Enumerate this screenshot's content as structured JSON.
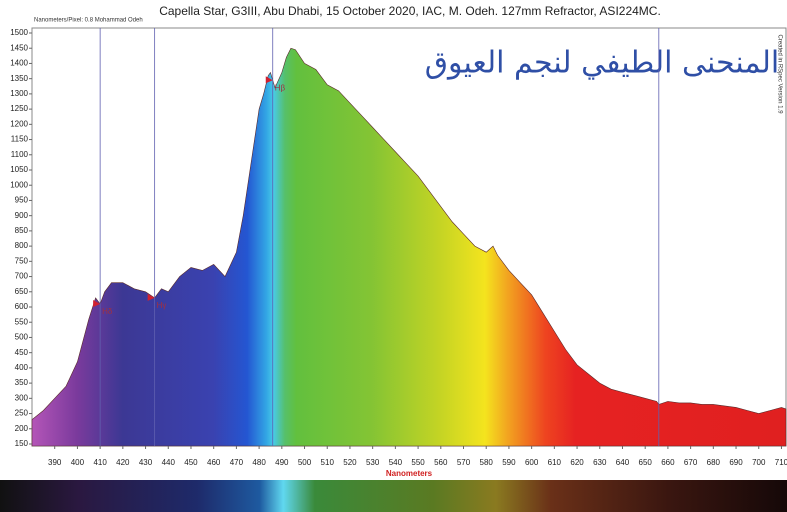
{
  "chart_data": {
    "type": "area",
    "title": "Capella Star, G3III, Abu Dhabi, 15 October 2020, IAC, M. Odeh. 127mm Refractor, ASI224MC.",
    "corner_note": "Nanometers/Pixel: 0.8 Mohammad Odeh",
    "side_note": "Created in RSpec Version 1.9",
    "arabic_title": "المنحنى الطيفي لنجم العيوق",
    "x_label": "Nanometers",
    "x": [
      380,
      385,
      390,
      395,
      400,
      405,
      408,
      410,
      412,
      415,
      420,
      425,
      430,
      434,
      437,
      440,
      445,
      450,
      455,
      460,
      465,
      470,
      473,
      476,
      478,
      480,
      482,
      484,
      485,
      487,
      490,
      492,
      494,
      496,
      500,
      505,
      510,
      515,
      520,
      525,
      530,
      535,
      540,
      545,
      550,
      555,
      560,
      565,
      570,
      575,
      580,
      583,
      585,
      590,
      595,
      600,
      605,
      610,
      615,
      620,
      625,
      630,
      635,
      640,
      645,
      650,
      655,
      656,
      660,
      665,
      670,
      675,
      680,
      685,
      690,
      695,
      700,
      705,
      710,
      712
    ],
    "values": [
      230,
      260,
      300,
      340,
      420,
      560,
      630,
      610,
      650,
      680,
      680,
      660,
      650,
      630,
      660,
      650,
      700,
      730,
      720,
      740,
      700,
      780,
      900,
      1050,
      1150,
      1250,
      1300,
      1360,
      1370,
      1320,
      1370,
      1420,
      1450,
      1445,
      1400,
      1380,
      1330,
      1310,
      1270,
      1230,
      1190,
      1150,
      1110,
      1070,
      1030,
      980,
      930,
      880,
      840,
      800,
      780,
      800,
      770,
      720,
      680,
      640,
      580,
      520,
      460,
      410,
      380,
      350,
      330,
      320,
      310,
      300,
      290,
      280,
      290,
      285,
      285,
      280,
      280,
      275,
      270,
      260,
      250,
      260,
      270,
      265
    ],
    "reference_lines": [
      410,
      434,
      486,
      656
    ],
    "line_labels": [
      "Hδ",
      "Hγ",
      "Hβ",
      null
    ],
    "xlim": [
      380,
      712
    ],
    "ylim": [
      150,
      1500
    ],
    "xticks": [
      390,
      400,
      410,
      420,
      430,
      440,
      450,
      460,
      470,
      480,
      490,
      500,
      510,
      520,
      530,
      540,
      550,
      560,
      570,
      580,
      590,
      600,
      610,
      620,
      630,
      640,
      650,
      660,
      670,
      680,
      690,
      700,
      710
    ],
    "yticks": [
      150,
      200,
      250,
      300,
      350,
      400,
      450,
      500,
      550,
      600,
      650,
      700,
      750,
      800,
      850,
      900,
      950,
      1000,
      1050,
      1100,
      1150,
      1200,
      1250,
      1300,
      1350,
      1400,
      1450,
      1500
    ],
    "grid": false
  }
}
